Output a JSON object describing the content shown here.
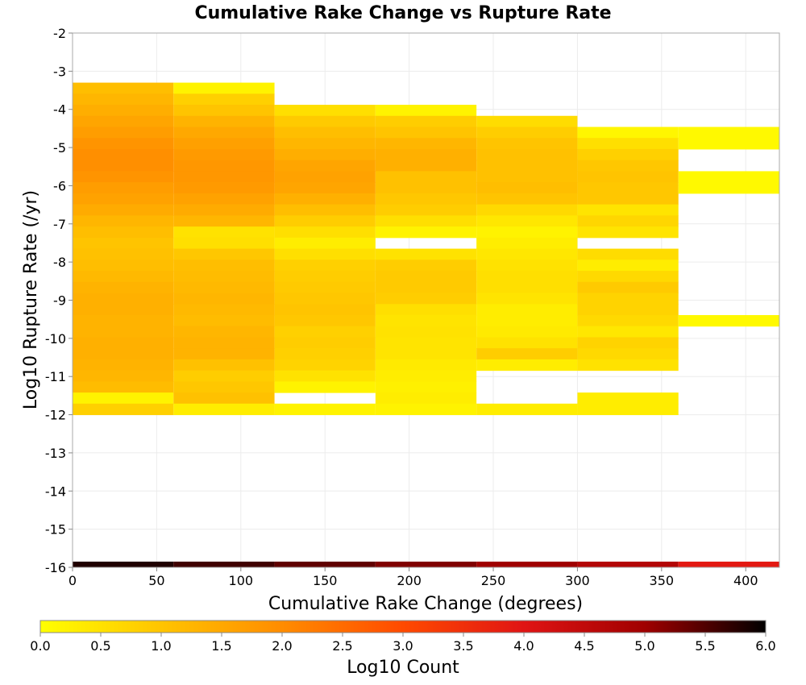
{
  "chart_data": {
    "type": "heatmap",
    "title": "Cumulative Rake Change vs Rupture Rate",
    "xlabel": "Cumulative Rake Change (degrees)",
    "ylabel": "Log10 Rupture Rate (/yr)",
    "xlim": [
      0,
      420
    ],
    "ylim": [
      -16,
      -2
    ],
    "x_ticks": [
      0,
      50,
      100,
      150,
      200,
      250,
      300,
      350,
      400
    ],
    "y_ticks": [
      -2,
      -3,
      -4,
      -5,
      -6,
      -7,
      -8,
      -9,
      -10,
      -11,
      -12,
      -13,
      -14,
      -15,
      -16
    ],
    "grid": true,
    "colorbar": {
      "label": "Log10 Count",
      "range": [
        0.0,
        6.0
      ],
      "ticks": [
        "0.0",
        "0.5",
        "1.0",
        "1.5",
        "2.0",
        "2.5",
        "3.0",
        "3.5",
        "4.0",
        "4.5",
        "5.0",
        "5.5",
        "6.0"
      ],
      "colormap": [
        "#ffff00",
        "#ffc400",
        "#ff8c00",
        "#ff4a00",
        "#e01414",
        "#a00000",
        "#000000"
      ]
    },
    "bin_width_x": 60,
    "bin_height_y": 0.29,
    "columns": [
      {
        "x_start": 0,
        "cells": [
          {
            "y_top": -3.3,
            "value": 1.1
          },
          {
            "y_top": -3.59,
            "value": 1.25
          },
          {
            "y_top": -3.88,
            "value": 1.4
          },
          {
            "y_top": -4.17,
            "value": 1.55
          },
          {
            "y_top": -4.46,
            "value": 1.7
          },
          {
            "y_top": -4.75,
            "value": 1.85
          },
          {
            "y_top": -5.04,
            "value": 1.95
          },
          {
            "y_top": -5.33,
            "value": 1.95
          },
          {
            "y_top": -5.62,
            "value": 1.85
          },
          {
            "y_top": -5.91,
            "value": 1.7
          },
          {
            "y_top": -6.2,
            "value": 1.6
          },
          {
            "y_top": -6.49,
            "value": 1.45
          },
          {
            "y_top": -6.78,
            "value": 1.25
          },
          {
            "y_top": -7.07,
            "value": 1.1
          },
          {
            "y_top": -7.36,
            "value": 1.0
          },
          {
            "y_top": -7.65,
            "value": 1.05
          },
          {
            "y_top": -7.94,
            "value": 1.1
          },
          {
            "y_top": -8.23,
            "value": 1.2
          },
          {
            "y_top": -8.52,
            "value": 1.3
          },
          {
            "y_top": -8.81,
            "value": 1.35
          },
          {
            "y_top": -9.1,
            "value": 1.35
          },
          {
            "y_top": -9.39,
            "value": 1.3
          },
          {
            "y_top": -9.68,
            "value": 1.3
          },
          {
            "y_top": -9.97,
            "value": 1.35
          },
          {
            "y_top": -10.26,
            "value": 1.35
          },
          {
            "y_top": -10.55,
            "value": 1.3
          },
          {
            "y_top": -10.84,
            "value": 1.25
          },
          {
            "y_top": -11.13,
            "value": 1.15
          },
          {
            "y_top": -11.42,
            "value": 0.2
          },
          {
            "y_top": -11.71,
            "value": 0.8
          }
        ]
      },
      {
        "x_start": 60,
        "cells": [
          {
            "y_top": -3.3,
            "value": 0.2
          },
          {
            "y_top": -3.59,
            "value": 0.8
          },
          {
            "y_top": -3.88,
            "value": 1.0
          },
          {
            "y_top": -4.17,
            "value": 1.3
          },
          {
            "y_top": -4.46,
            "value": 1.5
          },
          {
            "y_top": -4.75,
            "value": 1.65
          },
          {
            "y_top": -5.04,
            "value": 1.75
          },
          {
            "y_top": -5.33,
            "value": 1.8
          },
          {
            "y_top": -5.62,
            "value": 1.8
          },
          {
            "y_top": -5.91,
            "value": 1.75
          },
          {
            "y_top": -6.2,
            "value": 1.6
          },
          {
            "y_top": -6.49,
            "value": 1.45
          },
          {
            "y_top": -6.78,
            "value": 1.25
          },
          {
            "y_top": -7.07,
            "value": 0.5
          },
          {
            "y_top": -7.36,
            "value": 0.55
          },
          {
            "y_top": -7.65,
            "value": 0.95
          },
          {
            "y_top": -7.94,
            "value": 1.1
          },
          {
            "y_top": -8.23,
            "value": 1.15
          },
          {
            "y_top": -8.52,
            "value": 1.2
          },
          {
            "y_top": -8.81,
            "value": 1.25
          },
          {
            "y_top": -9.1,
            "value": 1.2
          },
          {
            "y_top": -9.39,
            "value": 1.15
          },
          {
            "y_top": -9.68,
            "value": 1.25
          },
          {
            "y_top": -9.97,
            "value": 1.3
          },
          {
            "y_top": -10.26,
            "value": 1.3
          },
          {
            "y_top": -10.55,
            "value": 1.05
          },
          {
            "y_top": -10.84,
            "value": 0.85
          },
          {
            "y_top": -11.13,
            "value": 0.95
          },
          {
            "y_top": -11.42,
            "value": 1.05
          },
          {
            "y_top": -11.71,
            "value": 0.3
          }
        ]
      },
      {
        "x_start": 120,
        "cells": [
          {
            "y_top": -3.88,
            "value": 0.55
          },
          {
            "y_top": -4.17,
            "value": 0.9
          },
          {
            "y_top": -4.46,
            "value": 1.1
          },
          {
            "y_top": -4.75,
            "value": 1.25
          },
          {
            "y_top": -5.04,
            "value": 1.4
          },
          {
            "y_top": -5.33,
            "value": 1.55
          },
          {
            "y_top": -5.62,
            "value": 1.6
          },
          {
            "y_top": -5.91,
            "value": 1.55
          },
          {
            "y_top": -6.2,
            "value": 1.35
          },
          {
            "y_top": -6.49,
            "value": 1.1
          },
          {
            "y_top": -6.78,
            "value": 0.85
          },
          {
            "y_top": -7.07,
            "value": 0.55
          },
          {
            "y_top": -7.36,
            "value": 0.3
          },
          {
            "y_top": -7.65,
            "value": 0.55
          },
          {
            "y_top": -7.94,
            "value": 0.8
          },
          {
            "y_top": -8.23,
            "value": 0.85
          },
          {
            "y_top": -8.52,
            "value": 0.9
          },
          {
            "y_top": -8.81,
            "value": 0.95
          },
          {
            "y_top": -9.1,
            "value": 1.0
          },
          {
            "y_top": -9.39,
            "value": 0.95
          },
          {
            "y_top": -9.68,
            "value": 0.8
          },
          {
            "y_top": -9.97,
            "value": 0.85
          },
          {
            "y_top": -10.26,
            "value": 0.8
          },
          {
            "y_top": -10.55,
            "value": 0.75
          },
          {
            "y_top": -10.84,
            "value": 0.5
          },
          {
            "y_top": -11.13,
            "value": 0.2
          },
          {
            "y_top": -11.71,
            "value": 0.2
          }
        ]
      },
      {
        "x_start": 180,
        "cells": [
          {
            "y_top": -3.88,
            "value": 0.2
          },
          {
            "y_top": -4.17,
            "value": 0.85
          },
          {
            "y_top": -4.46,
            "value": 1.0
          },
          {
            "y_top": -4.75,
            "value": 1.25
          },
          {
            "y_top": -5.04,
            "value": 1.35
          },
          {
            "y_top": -5.33,
            "value": 1.35
          },
          {
            "y_top": -5.62,
            "value": 1.05
          },
          {
            "y_top": -5.91,
            "value": 1.05
          },
          {
            "y_top": -6.2,
            "value": 0.95
          },
          {
            "y_top": -6.49,
            "value": 0.85
          },
          {
            "y_top": -6.78,
            "value": 0.55
          },
          {
            "y_top": -7.07,
            "value": 0.2
          },
          {
            "y_top": -7.65,
            "value": 0.5
          },
          {
            "y_top": -7.94,
            "value": 0.85
          },
          {
            "y_top": -8.23,
            "value": 0.9
          },
          {
            "y_top": -8.52,
            "value": 0.9
          },
          {
            "y_top": -8.81,
            "value": 0.85
          },
          {
            "y_top": -9.1,
            "value": 0.55
          },
          {
            "y_top": -9.39,
            "value": 0.45
          },
          {
            "y_top": -9.68,
            "value": 0.5
          },
          {
            "y_top": -9.97,
            "value": 0.45
          },
          {
            "y_top": -10.26,
            "value": 0.45
          },
          {
            "y_top": -10.55,
            "value": 0.35
          },
          {
            "y_top": -10.84,
            "value": 0.3
          },
          {
            "y_top": -11.13,
            "value": 0.25
          },
          {
            "y_top": -11.42,
            "value": 0.3
          },
          {
            "y_top": -11.71,
            "value": 0.2
          }
        ]
      },
      {
        "x_start": 240,
        "cells": [
          {
            "y_top": -4.17,
            "value": 0.6
          },
          {
            "y_top": -4.46,
            "value": 0.85
          },
          {
            "y_top": -4.75,
            "value": 1.0
          },
          {
            "y_top": -5.04,
            "value": 1.05
          },
          {
            "y_top": -5.33,
            "value": 1.05
          },
          {
            "y_top": -5.62,
            "value": 1.05
          },
          {
            "y_top": -5.91,
            "value": 1.1
          },
          {
            "y_top": -6.2,
            "value": 1.0
          },
          {
            "y_top": -6.49,
            "value": 0.65
          },
          {
            "y_top": -6.78,
            "value": 0.4
          },
          {
            "y_top": -7.07,
            "value": 0.2
          },
          {
            "y_top": -7.36,
            "value": 0.3
          },
          {
            "y_top": -7.65,
            "value": 0.4
          },
          {
            "y_top": -7.94,
            "value": 0.5
          },
          {
            "y_top": -8.23,
            "value": 0.55
          },
          {
            "y_top": -8.52,
            "value": 0.55
          },
          {
            "y_top": -8.81,
            "value": 0.45
          },
          {
            "y_top": -9.1,
            "value": 0.3
          },
          {
            "y_top": -9.39,
            "value": 0.3
          },
          {
            "y_top": -9.68,
            "value": 0.35
          },
          {
            "y_top": -9.97,
            "value": 0.5
          },
          {
            "y_top": -10.26,
            "value": 0.85
          },
          {
            "y_top": -10.55,
            "value": 0.3
          },
          {
            "y_top": -11.71,
            "value": 0.3
          }
        ]
      },
      {
        "x_start": 300,
        "cells": [
          {
            "y_top": -4.46,
            "value": 0.15
          },
          {
            "y_top": -4.75,
            "value": 0.55
          },
          {
            "y_top": -5.04,
            "value": 0.8
          },
          {
            "y_top": -5.33,
            "value": 0.95
          },
          {
            "y_top": -5.62,
            "value": 1.0
          },
          {
            "y_top": -5.91,
            "value": 0.95
          },
          {
            "y_top": -6.2,
            "value": 0.95
          },
          {
            "y_top": -6.49,
            "value": 0.45
          },
          {
            "y_top": -6.78,
            "value": 0.7
          },
          {
            "y_top": -7.07,
            "value": 0.45
          },
          {
            "y_top": -7.65,
            "value": 0.6
          },
          {
            "y_top": -7.94,
            "value": 0.3
          },
          {
            "y_top": -8.23,
            "value": 0.65
          },
          {
            "y_top": -8.52,
            "value": 0.9
          },
          {
            "y_top": -8.81,
            "value": 0.75
          },
          {
            "y_top": -9.1,
            "value": 0.75
          },
          {
            "y_top": -9.39,
            "value": 0.65
          },
          {
            "y_top": -9.68,
            "value": 0.4
          },
          {
            "y_top": -9.97,
            "value": 0.75
          },
          {
            "y_top": -10.26,
            "value": 0.65
          },
          {
            "y_top": -10.55,
            "value": 0.5
          },
          {
            "y_top": -11.42,
            "value": 0.3
          },
          {
            "y_top": -11.71,
            "value": 0.3
          }
        ]
      },
      {
        "x_start": 360,
        "cells": [
          {
            "y_top": -4.46,
            "value": 0.1
          },
          {
            "y_top": -4.75,
            "value": 0.1
          },
          {
            "y_top": -5.62,
            "value": 0.1
          },
          {
            "y_top": -5.91,
            "value": 0.1
          },
          {
            "y_top": -9.39,
            "value": 0.1
          }
        ]
      }
    ],
    "baseline_row": {
      "y_top": -15.85,
      "y_bottom": -16.0,
      "segments": [
        {
          "x_start": 0,
          "x_end": 60,
          "value": 5.8
        },
        {
          "x_start": 60,
          "x_end": 120,
          "value": 5.6
        },
        {
          "x_start": 120,
          "x_end": 180,
          "value": 5.4
        },
        {
          "x_start": 180,
          "x_end": 240,
          "value": 5.2
        },
        {
          "x_start": 240,
          "x_end": 300,
          "value": 5.0
        },
        {
          "x_start": 300,
          "x_end": 360,
          "value": 4.7
        },
        {
          "x_start": 360,
          "x_end": 420,
          "value": 3.9
        }
      ]
    }
  }
}
